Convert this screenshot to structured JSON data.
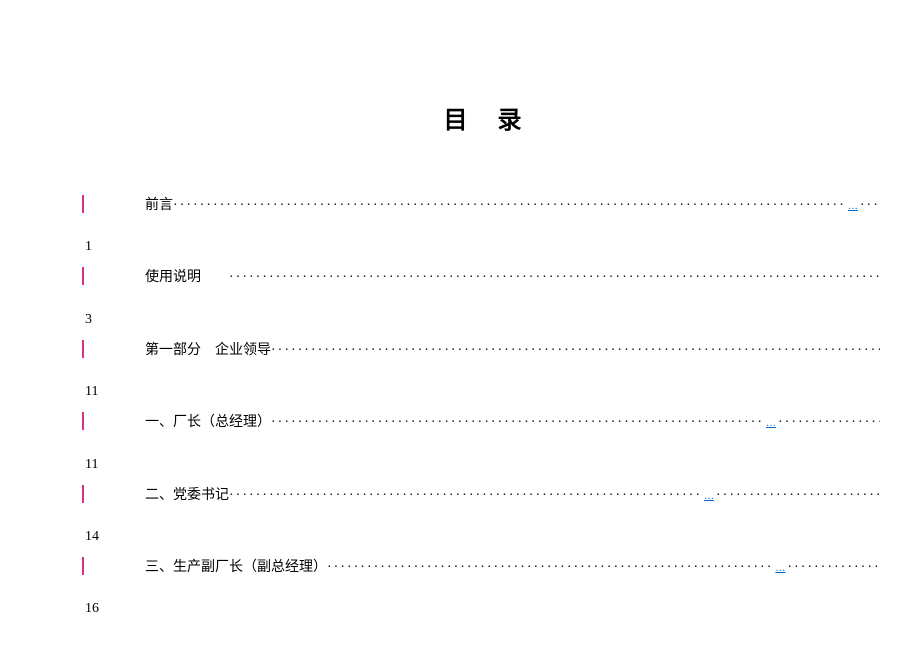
{
  "title": "目录",
  "entries": [
    {
      "text": "前言",
      "page": "1",
      "link_pos": 0.78
    },
    {
      "text": "使用说明",
      "page": "3",
      "link_pos": 0.82,
      "gap_after_text": true
    },
    {
      "text": "第一部分　企业领导",
      "page": "11",
      "link_pos": 0.88
    },
    {
      "text": "一、厂长（总经理）",
      "page": "11",
      "link_pos": 0.57
    },
    {
      "text": "二、党委书记",
      "page": "14",
      "link_pos": 0.55
    },
    {
      "text": "三、生产副厂长（副总经理）",
      "page": "16",
      "link_pos": 0.52
    }
  ],
  "colors": {
    "background": "#ffffff",
    "text": "#000000",
    "link": "#0066cc",
    "marker": "#d63384"
  }
}
